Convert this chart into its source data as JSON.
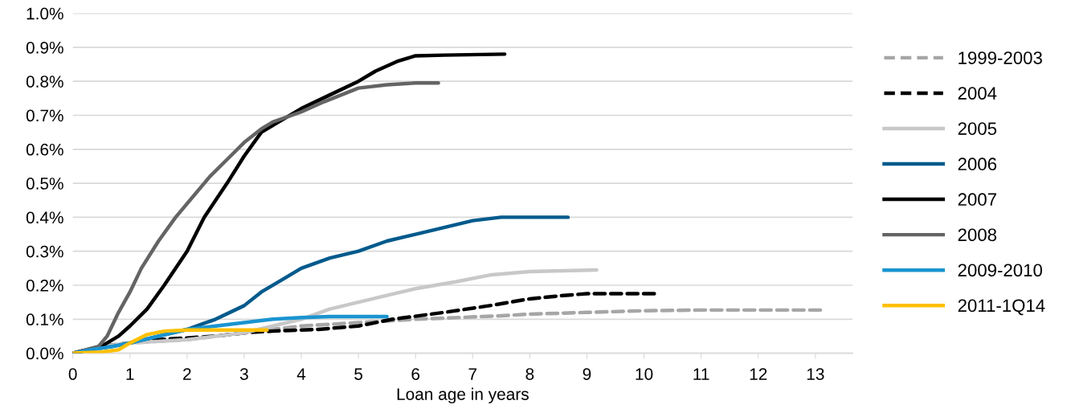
{
  "chart_data": {
    "type": "line",
    "xlabel": "Loan age in years",
    "xlim": [
      0,
      13.65
    ],
    "xticks": [
      0,
      1,
      2,
      3,
      4,
      5,
      6,
      7,
      8,
      9,
      10,
      11,
      12,
      13
    ],
    "ylim": [
      0,
      1.0
    ],
    "yticks": [
      {
        "value": 0,
        "label": "0.0%"
      },
      {
        "value": 0.1,
        "label": "0.1%"
      },
      {
        "value": 0.2,
        "label": "0.2%"
      },
      {
        "value": 0.3,
        "label": "0.3%"
      },
      {
        "value": 0.4,
        "label": "0.4%"
      },
      {
        "value": 0.5,
        "label": "0.5%"
      },
      {
        "value": 0.6,
        "label": "0.6%"
      },
      {
        "value": 0.7,
        "label": "0.7%"
      },
      {
        "value": 0.8,
        "label": "0.8%"
      },
      {
        "value": 0.9,
        "label": "0.9%"
      },
      {
        "value": 1.0,
        "label": "1.0%"
      }
    ],
    "grid": "y",
    "legend": "right",
    "marker": "none",
    "series": [
      {
        "name": "1999-2003",
        "color": "#a6a6a6",
        "line_style": "dashed",
        "x": [
          0,
          0.5,
          1,
          2,
          3,
          4,
          5,
          6,
          7.5,
          8,
          9,
          10,
          11,
          13.15
        ],
        "values": [
          0,
          0.02,
          0.03,
          0.04,
          0.06,
          0.08,
          0.09,
          0.1,
          0.11,
          0.115,
          0.12,
          0.125,
          0.127,
          0.127
        ]
      },
      {
        "name": "2004",
        "color": "#000000",
        "line_style": "dashed",
        "x": [
          0,
          0.5,
          1,
          1.5,
          2.5,
          3,
          3.5,
          4.3,
          5,
          5.6,
          6.5,
          7.3,
          8,
          8.6,
          9,
          10.18
        ],
        "values": [
          0,
          0.02,
          0.03,
          0.04,
          0.05,
          0.06,
          0.065,
          0.07,
          0.08,
          0.1,
          0.12,
          0.14,
          0.16,
          0.17,
          0.175,
          0.175
        ]
      },
      {
        "name": "2005",
        "color": "#c8c8c8",
        "line_style": "solid",
        "x": [
          0,
          0.5,
          1,
          2,
          2.5,
          3,
          3.5,
          4,
          4.5,
          5,
          5.5,
          6,
          6.7,
          7.3,
          8,
          9.17
        ],
        "values": [
          0,
          0.02,
          0.03,
          0.04,
          0.05,
          0.06,
          0.08,
          0.1,
          0.13,
          0.15,
          0.17,
          0.19,
          0.21,
          0.23,
          0.24,
          0.245
        ]
      },
      {
        "name": "2006",
        "color": "#005a8c",
        "line_style": "solid",
        "x": [
          0,
          0.3,
          0.7,
          1,
          1.5,
          2,
          2.5,
          3,
          3.3,
          3.7,
          4,
          4.5,
          5,
          5.5,
          6,
          6.5,
          7,
          7.5,
          8.67
        ],
        "values": [
          0,
          0.01,
          0.02,
          0.03,
          0.05,
          0.07,
          0.1,
          0.14,
          0.18,
          0.22,
          0.25,
          0.28,
          0.3,
          0.33,
          0.35,
          0.37,
          0.39,
          0.4,
          0.4
        ]
      },
      {
        "name": "2007",
        "color": "#000000",
        "line_style": "solid",
        "x": [
          0,
          0.5,
          0.8,
          1,
          1.3,
          1.6,
          2,
          2.3,
          2.7,
          3,
          3.3,
          3.6,
          4,
          4.5,
          5,
          5.3,
          5.7,
          6,
          6.5,
          7.56
        ],
        "values": [
          0,
          0.02,
          0.05,
          0.08,
          0.13,
          0.2,
          0.3,
          0.4,
          0.5,
          0.58,
          0.65,
          0.68,
          0.72,
          0.76,
          0.8,
          0.83,
          0.86,
          0.875,
          0.877,
          0.88
        ]
      },
      {
        "name": "2008",
        "color": "#646464",
        "line_style": "solid",
        "x": [
          0,
          0.45,
          0.6,
          0.8,
          1,
          1.2,
          1.5,
          1.8,
          2.1,
          2.4,
          2.7,
          3,
          3.3,
          3.5,
          4,
          4.4,
          5,
          5.5,
          6,
          6.4
        ],
        "values": [
          0,
          0.02,
          0.05,
          0.12,
          0.18,
          0.25,
          0.33,
          0.4,
          0.46,
          0.52,
          0.57,
          0.62,
          0.66,
          0.68,
          0.71,
          0.74,
          0.78,
          0.79,
          0.795,
          0.795
        ]
      },
      {
        "name": "2009-2010",
        "color": "#1a94d0",
        "line_style": "solid",
        "x": [
          0,
          0.3,
          0.7,
          1,
          1.5,
          2,
          2.5,
          3,
          3.5,
          4,
          4.5,
          5.5
        ],
        "values": [
          0,
          0.01,
          0.02,
          0.03,
          0.05,
          0.07,
          0.08,
          0.09,
          0.1,
          0.105,
          0.108,
          0.108
        ]
      },
      {
        "name": "2011-1Q14",
        "color": "#ffc000",
        "line_style": "solid",
        "x": [
          0,
          0.5,
          0.8,
          1,
          1.3,
          1.6,
          2,
          3.4
        ],
        "values": [
          0,
          0.003,
          0.01,
          0.03,
          0.055,
          0.065,
          0.068,
          0.068
        ]
      }
    ]
  }
}
